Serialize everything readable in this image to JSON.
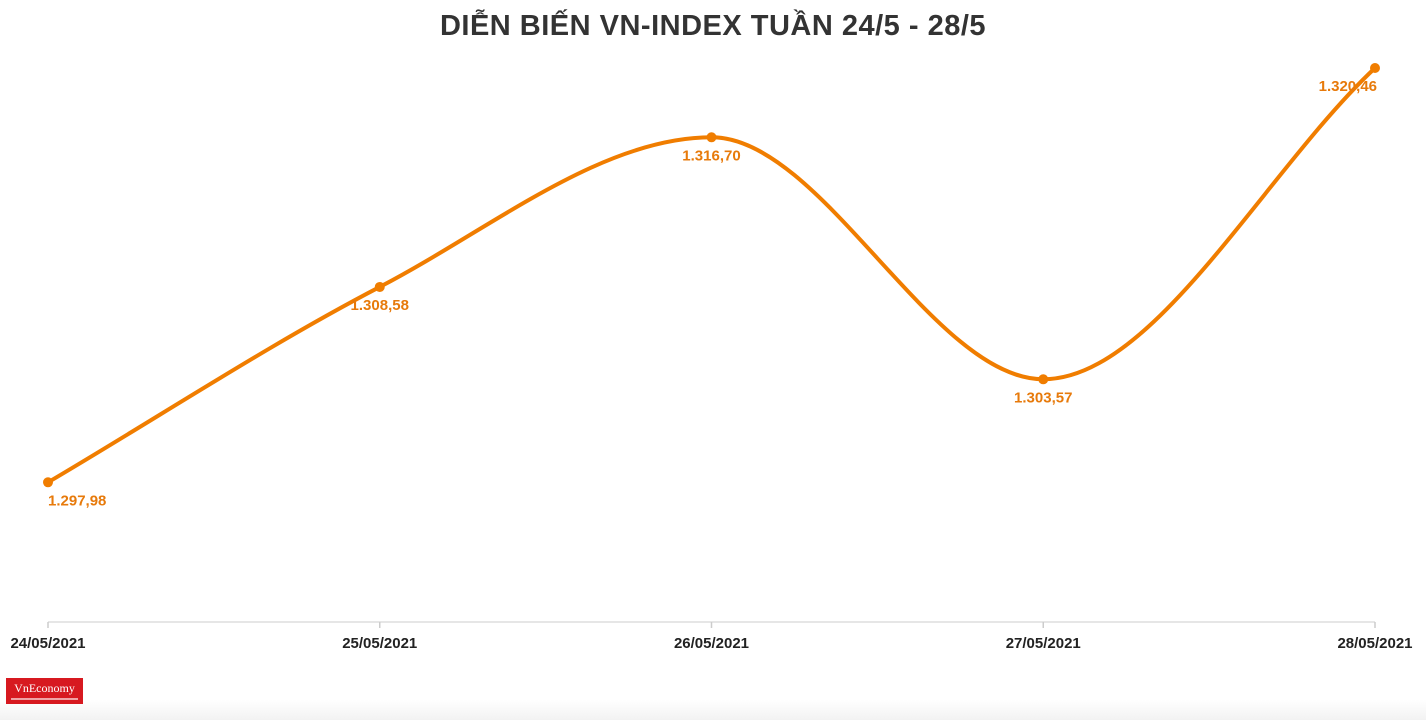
{
  "chart_data": {
    "type": "line",
    "title": "DIỄN BIẾN VN-INDEX TUẦN 24/5 - 28/5",
    "categories": [
      "24/05/2021",
      "25/05/2021",
      "26/05/2021",
      "27/05/2021",
      "28/05/2021"
    ],
    "values": [
      1297.98,
      1308.58,
      1316.7,
      1303.57,
      1320.46
    ],
    "data_labels": [
      "1.297,98",
      "1.308,58",
      "1.316,70",
      "1.303,57",
      "1.320,46"
    ],
    "xlabel": "",
    "ylabel": "",
    "ylim": [
      1290.4,
      1320.46
    ],
    "grid": false,
    "legend": "none",
    "line_color": "#f07d00",
    "label_color": "#e77a0b"
  },
  "brand": {
    "name": "VnEconomy",
    "color": "#d71920"
  }
}
